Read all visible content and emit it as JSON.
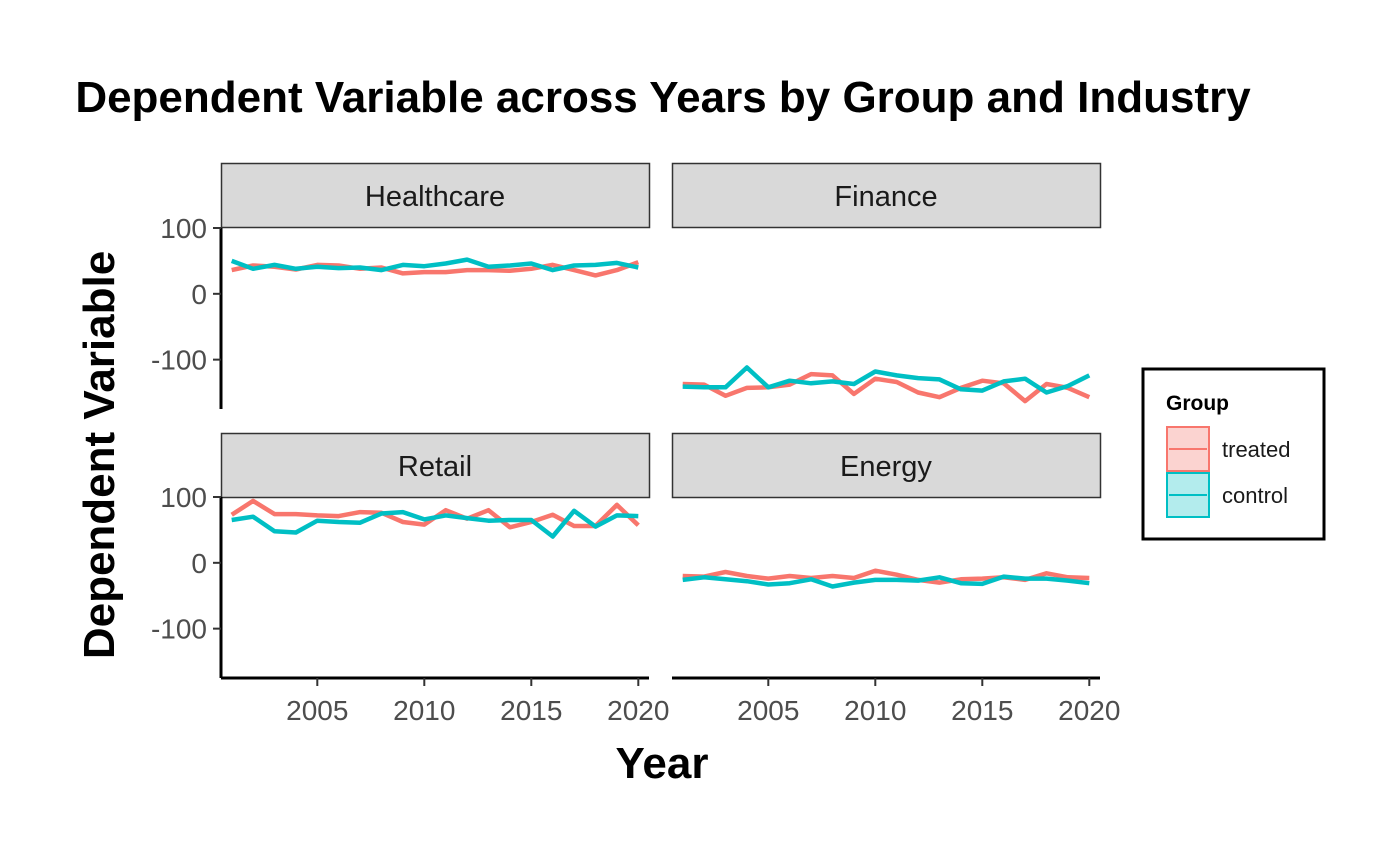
{
  "chart_data": {
    "type": "line",
    "title": "Dependent Variable across Years by Group and Industry",
    "xlabel": "Year",
    "ylabel": "Dependent Variable",
    "xlim": [
      2000.5,
      2020.5
    ],
    "ylim": [
      -175,
      100
    ],
    "x_ticks": [
      2005,
      2010,
      2015,
      2020
    ],
    "y_ticks": [
      100,
      0,
      -100
    ],
    "y_tick_labels": [
      "100",
      "0",
      "-100"
    ],
    "x_tick_labels": [
      "2005",
      "2010",
      "2015",
      "2020"
    ],
    "grid": false,
    "legend": {
      "title": "Group",
      "position": "right",
      "entries": [
        {
          "label": "treated",
          "color": "#F8766D",
          "fill": "#FBD3D0"
        },
        {
          "label": "control",
          "color": "#00BFC4",
          "fill": "#B3ECED"
        }
      ]
    },
    "x": [
      2001,
      2002,
      2003,
      2004,
      2005,
      2006,
      2007,
      2008,
      2009,
      2010,
      2011,
      2012,
      2013,
      2014,
      2015,
      2016,
      2017,
      2018,
      2019,
      2020
    ],
    "panels": [
      {
        "label": "Healthcare",
        "series": [
          {
            "name": "treated",
            "values": [
              36,
              43,
              41,
              37,
              44,
              43,
              38,
              40,
              31,
              33,
              33,
              36,
              36,
              35,
              38,
              44,
              36,
              28,
              36,
              48
            ]
          },
          {
            "name": "control",
            "values": [
              50,
              38,
              44,
              38,
              41,
              39,
              40,
              36,
              44,
              42,
              46,
              52,
              41,
              43,
              46,
              36,
              43,
              44,
              47,
              40
            ]
          }
        ]
      },
      {
        "label": "Finance",
        "series": [
          {
            "name": "treated",
            "values": [
              -137,
              -138,
              -155,
              -143,
              -142,
              -138,
              -122,
              -124,
              -152,
              -129,
              -134,
              -150,
              -157,
              -143,
              -132,
              -136,
              -163,
              -137,
              -143,
              -157
            ]
          },
          {
            "name": "control",
            "values": [
              -141,
              -142,
              -142,
              -112,
              -142,
              -132,
              -136,
              -133,
              -137,
              -118,
              -124,
              -128,
              -130,
              -145,
              -147,
              -133,
              -129,
              -150,
              -140,
              -124
            ]
          }
        ]
      },
      {
        "label": "Retail",
        "series": [
          {
            "name": "treated",
            "values": [
              73,
              94,
              74,
              74,
              72,
              71,
              77,
              76,
              62,
              58,
              80,
              67,
              80,
              54,
              62,
              73,
              56,
              56,
              88,
              57
            ]
          },
          {
            "name": "control",
            "values": [
              65,
              70,
              48,
              46,
              64,
              62,
              61,
              75,
              77,
              66,
              72,
              68,
              64,
              65,
              65,
              40,
              79,
              55,
              72,
              71
            ]
          }
        ]
      },
      {
        "label": "Energy",
        "series": [
          {
            "name": "treated",
            "values": [
              -20,
              -21,
              -14,
              -20,
              -24,
              -20,
              -23,
              -20,
              -23,
              -12,
              -18,
              -26,
              -30,
              -25,
              -24,
              -22,
              -26,
              -16,
              -22,
              -23
            ]
          },
          {
            "name": "control",
            "values": [
              -26,
              -22,
              -25,
              -28,
              -33,
              -31,
              -25,
              -36,
              -30,
              -26,
              -26,
              -27,
              -22,
              -31,
              -32,
              -21,
              -24,
              -24,
              -27,
              -31
            ]
          }
        ]
      }
    ]
  }
}
